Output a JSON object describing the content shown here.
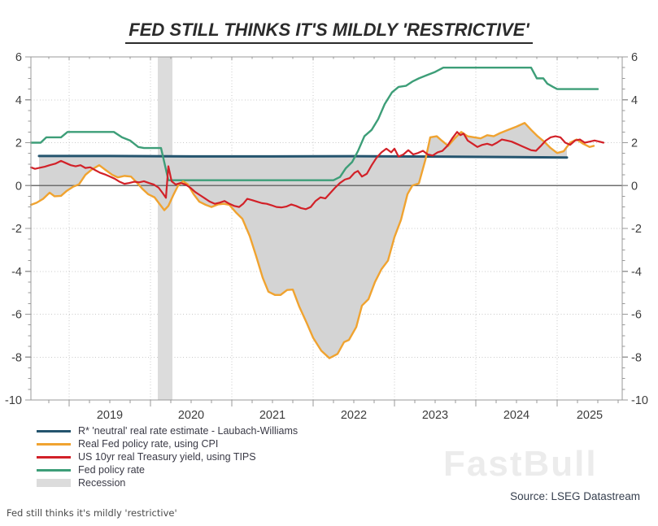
{
  "title": "FED STILL THINKS IT'S MILDLY 'RESTRICTIVE'",
  "caption": "Fed still thinks it's mildly 'restrictive'",
  "source": "Source: LSEG Datastream",
  "watermark": "FastBull",
  "chart_data": {
    "type": "line",
    "title": "FED STILL THINKS IT'S MILDLY 'RESTRICTIVE'",
    "xlabel": "",
    "ylabel": "",
    "x_range": [
      2018.53,
      2025.8
    ],
    "y_range": [
      -10,
      6
    ],
    "grid": true,
    "legend_position": "bottom-left",
    "axis_color": "#999999",
    "grid_color": "#c9c9c9",
    "zero_line_color": "#6e6e6e",
    "tick_label_color": "#3d3d3d",
    "y_ticks": [
      {
        "v": 6,
        "label": "6"
      },
      {
        "v": 4,
        "label": "4"
      },
      {
        "v": 2,
        "label": "2"
      },
      {
        "v": 0,
        "label": "0"
      },
      {
        "v": -2,
        "label": "-2"
      },
      {
        "v": -4,
        "label": "-4"
      },
      {
        "v": -6,
        "label": "-6"
      },
      {
        "v": -8,
        "label": "-8"
      },
      {
        "v": -10,
        "label": "-10"
      }
    ],
    "y_minor_step": 0.5,
    "x_year_ticks": [
      2019,
      2020,
      2021,
      2022,
      2023,
      2024,
      2025
    ],
    "x_minor_step": 0.25,
    "x_tick_labels": [
      {
        "t": 2019.5,
        "label": "2019"
      },
      {
        "t": 2020.5,
        "label": "2020"
      },
      {
        "t": 2021.5,
        "label": "2021"
      },
      {
        "t": 2022.5,
        "label": "2022"
      },
      {
        "t": 2023.5,
        "label": "2023"
      },
      {
        "t": 2024.5,
        "label": "2024"
      },
      {
        "t": 2025.4,
        "label": "2025"
      }
    ],
    "recession": {
      "label": "Recession",
      "color": "#dcdcdc",
      "start": 2020.09,
      "end": 2020.27
    },
    "fill_between": {
      "upper": "Real Fed policy rate, using CPI",
      "lower": "R* 'neutral' real rate estimate - Laubach-Williams",
      "color": "#d4d4d4"
    },
    "series": [
      {
        "name": "R* 'neutral' real rate estimate - Laubach-Williams",
        "color": "#24546e",
        "width": 3,
        "points": [
          [
            2018.63,
            1.38
          ],
          [
            2019.5,
            1.38
          ],
          [
            2020.5,
            1.36
          ],
          [
            2021.5,
            1.36
          ],
          [
            2022.5,
            1.37
          ],
          [
            2023.5,
            1.35
          ],
          [
            2024.3,
            1.33
          ],
          [
            2025.12,
            1.31
          ]
        ]
      },
      {
        "name": "Real Fed policy rate, using CPI",
        "color": "#f0a330",
        "width": 2.4,
        "points": [
          [
            2018.53,
            -0.9
          ],
          [
            2018.6,
            -0.8
          ],
          [
            2018.68,
            -0.62
          ],
          [
            2018.76,
            -0.33
          ],
          [
            2018.82,
            -0.5
          ],
          [
            2018.9,
            -0.48
          ],
          [
            2018.97,
            -0.25
          ],
          [
            2019.05,
            -0.05
          ],
          [
            2019.12,
            0.05
          ],
          [
            2019.2,
            0.5
          ],
          [
            2019.28,
            0.75
          ],
          [
            2019.37,
            0.95
          ],
          [
            2019.45,
            0.72
          ],
          [
            2019.53,
            0.5
          ],
          [
            2019.6,
            0.38
          ],
          [
            2019.68,
            0.45
          ],
          [
            2019.76,
            0.42
          ],
          [
            2019.83,
            0.15
          ],
          [
            2019.9,
            -0.15
          ],
          [
            2019.97,
            -0.4
          ],
          [
            2020.05,
            -0.55
          ],
          [
            2020.1,
            -0.8
          ],
          [
            2020.17,
            -1.15
          ],
          [
            2020.22,
            -0.95
          ],
          [
            2020.28,
            -0.45
          ],
          [
            2020.34,
            0.0
          ],
          [
            2020.4,
            0.2
          ],
          [
            2020.46,
            0.05
          ],
          [
            2020.53,
            -0.4
          ],
          [
            2020.6,
            -0.75
          ],
          [
            2020.68,
            -0.9
          ],
          [
            2020.75,
            -1.0
          ],
          [
            2020.83,
            -0.88
          ],
          [
            2020.9,
            -0.85
          ],
          [
            2020.97,
            -0.9
          ],
          [
            2021.05,
            -1.25
          ],
          [
            2021.13,
            -1.55
          ],
          [
            2021.22,
            -2.35
          ],
          [
            2021.3,
            -3.3
          ],
          [
            2021.38,
            -4.3
          ],
          [
            2021.45,
            -4.95
          ],
          [
            2021.53,
            -5.1
          ],
          [
            2021.6,
            -5.1
          ],
          [
            2021.68,
            -4.87
          ],
          [
            2021.75,
            -4.85
          ],
          [
            2021.83,
            -5.65
          ],
          [
            2021.92,
            -6.4
          ],
          [
            2022.0,
            -7.1
          ],
          [
            2022.1,
            -7.7
          ],
          [
            2022.2,
            -8.05
          ],
          [
            2022.3,
            -7.85
          ],
          [
            2022.38,
            -7.3
          ],
          [
            2022.44,
            -7.2
          ],
          [
            2022.53,
            -6.6
          ],
          [
            2022.6,
            -5.6
          ],
          [
            2022.68,
            -5.3
          ],
          [
            2022.76,
            -4.5
          ],
          [
            2022.84,
            -3.9
          ],
          [
            2022.92,
            -3.5
          ],
          [
            2023.0,
            -2.4
          ],
          [
            2023.08,
            -1.6
          ],
          [
            2023.16,
            -0.4
          ],
          [
            2023.22,
            0.0
          ],
          [
            2023.3,
            0.1
          ],
          [
            2023.38,
            1.2
          ],
          [
            2023.44,
            2.25
          ],
          [
            2023.52,
            2.3
          ],
          [
            2023.58,
            2.1
          ],
          [
            2023.66,
            1.85
          ],
          [
            2023.74,
            2.2
          ],
          [
            2023.82,
            2.5
          ],
          [
            2023.9,
            2.3
          ],
          [
            2023.98,
            2.25
          ],
          [
            2024.06,
            2.2
          ],
          [
            2024.14,
            2.35
          ],
          [
            2024.22,
            2.3
          ],
          [
            2024.3,
            2.45
          ],
          [
            2024.4,
            2.6
          ],
          [
            2024.5,
            2.75
          ],
          [
            2024.6,
            2.92
          ],
          [
            2024.68,
            2.6
          ],
          [
            2024.76,
            2.3
          ],
          [
            2024.84,
            2.05
          ],
          [
            2024.92,
            1.75
          ],
          [
            2025.0,
            1.52
          ],
          [
            2025.08,
            1.6
          ],
          [
            2025.16,
            2.0
          ],
          [
            2025.24,
            2.15
          ],
          [
            2025.32,
            1.95
          ],
          [
            2025.4,
            1.8
          ],
          [
            2025.45,
            1.85
          ]
        ]
      },
      {
        "name": "US 10yr real Treasury yield, using TIPS",
        "color": "#d22128",
        "width": 2.2,
        "points": [
          [
            2018.53,
            0.85
          ],
          [
            2018.58,
            0.78
          ],
          [
            2018.64,
            0.83
          ],
          [
            2018.7,
            0.88
          ],
          [
            2018.76,
            0.95
          ],
          [
            2018.83,
            1.02
          ],
          [
            2018.9,
            1.15
          ],
          [
            2018.96,
            1.05
          ],
          [
            2019.02,
            0.95
          ],
          [
            2019.08,
            0.9
          ],
          [
            2019.14,
            0.95
          ],
          [
            2019.2,
            0.82
          ],
          [
            2019.26,
            0.85
          ],
          [
            2019.32,
            0.72
          ],
          [
            2019.38,
            0.6
          ],
          [
            2019.44,
            0.52
          ],
          [
            2019.5,
            0.42
          ],
          [
            2019.56,
            0.32
          ],
          [
            2019.62,
            0.18
          ],
          [
            2019.68,
            0.08
          ],
          [
            2019.74,
            0.12
          ],
          [
            2019.8,
            0.18
          ],
          [
            2019.86,
            0.15
          ],
          [
            2019.92,
            0.2
          ],
          [
            2019.98,
            0.12
          ],
          [
            2020.04,
            0.05
          ],
          [
            2020.1,
            -0.1
          ],
          [
            2020.15,
            -0.35
          ],
          [
            2020.19,
            -0.57
          ],
          [
            2020.22,
            0.9
          ],
          [
            2020.26,
            0.2
          ],
          [
            2020.31,
            0.05
          ],
          [
            2020.37,
            0.12
          ],
          [
            2020.43,
            0.05
          ],
          [
            2020.49,
            -0.1
          ],
          [
            2020.55,
            -0.3
          ],
          [
            2020.61,
            -0.45
          ],
          [
            2020.67,
            -0.6
          ],
          [
            2020.73,
            -0.75
          ],
          [
            2020.79,
            -0.85
          ],
          [
            2020.85,
            -0.8
          ],
          [
            2020.91,
            -0.72
          ],
          [
            2020.97,
            -0.85
          ],
          [
            2021.03,
            -0.95
          ],
          [
            2021.09,
            -1.0
          ],
          [
            2021.14,
            -0.85
          ],
          [
            2021.19,
            -0.62
          ],
          [
            2021.25,
            -0.68
          ],
          [
            2021.31,
            -0.75
          ],
          [
            2021.37,
            -0.82
          ],
          [
            2021.43,
            -0.85
          ],
          [
            2021.49,
            -0.92
          ],
          [
            2021.55,
            -1.0
          ],
          [
            2021.61,
            -1.02
          ],
          [
            2021.67,
            -0.98
          ],
          [
            2021.73,
            -0.88
          ],
          [
            2021.79,
            -0.95
          ],
          [
            2021.85,
            -1.05
          ],
          [
            2021.91,
            -1.1
          ],
          [
            2021.97,
            -1.0
          ],
          [
            2022.03,
            -0.72
          ],
          [
            2022.09,
            -0.55
          ],
          [
            2022.15,
            -0.6
          ],
          [
            2022.21,
            -0.35
          ],
          [
            2022.27,
            -0.1
          ],
          [
            2022.33,
            0.12
          ],
          [
            2022.39,
            0.28
          ],
          [
            2022.45,
            0.35
          ],
          [
            2022.51,
            0.6
          ],
          [
            2022.55,
            0.68
          ],
          [
            2022.6,
            0.42
          ],
          [
            2022.66,
            0.55
          ],
          [
            2022.72,
            0.95
          ],
          [
            2022.78,
            1.3
          ],
          [
            2022.84,
            1.55
          ],
          [
            2022.9,
            1.72
          ],
          [
            2022.96,
            1.55
          ],
          [
            2023.0,
            1.72
          ],
          [
            2023.05,
            1.35
          ],
          [
            2023.11,
            1.45
          ],
          [
            2023.17,
            1.65
          ],
          [
            2023.23,
            1.45
          ],
          [
            2023.29,
            1.52
          ],
          [
            2023.35,
            1.62
          ],
          [
            2023.41,
            1.45
          ],
          [
            2023.47,
            1.4
          ],
          [
            2023.53,
            1.55
          ],
          [
            2023.59,
            1.62
          ],
          [
            2023.65,
            1.85
          ],
          [
            2023.71,
            2.2
          ],
          [
            2023.77,
            2.5
          ],
          [
            2023.81,
            2.35
          ],
          [
            2023.85,
            2.42
          ],
          [
            2023.9,
            2.1
          ],
          [
            2023.96,
            1.95
          ],
          [
            2024.02,
            1.8
          ],
          [
            2024.08,
            1.9
          ],
          [
            2024.14,
            1.95
          ],
          [
            2024.2,
            1.88
          ],
          [
            2024.26,
            2.0
          ],
          [
            2024.32,
            2.15
          ],
          [
            2024.38,
            2.1
          ],
          [
            2024.44,
            2.05
          ],
          [
            2024.5,
            1.95
          ],
          [
            2024.56,
            1.85
          ],
          [
            2024.62,
            1.75
          ],
          [
            2024.68,
            1.65
          ],
          [
            2024.74,
            1.62
          ],
          [
            2024.8,
            1.85
          ],
          [
            2024.86,
            2.1
          ],
          [
            2024.92,
            2.25
          ],
          [
            2024.98,
            2.3
          ],
          [
            2025.04,
            2.25
          ],
          [
            2025.1,
            2.0
          ],
          [
            2025.16,
            1.9
          ],
          [
            2025.22,
            2.1
          ],
          [
            2025.28,
            2.15
          ],
          [
            2025.34,
            2.0
          ],
          [
            2025.4,
            2.05
          ],
          [
            2025.46,
            2.1
          ],
          [
            2025.52,
            2.05
          ],
          [
            2025.57,
            2.0
          ]
        ]
      },
      {
        "name": "Fed policy rate",
        "color": "#3d9e78",
        "width": 2.4,
        "points": [
          [
            2018.53,
            2.0
          ],
          [
            2018.65,
            2.0
          ],
          [
            2018.72,
            2.25
          ],
          [
            2018.9,
            2.25
          ],
          [
            2018.98,
            2.5
          ],
          [
            2019.55,
            2.5
          ],
          [
            2019.65,
            2.25
          ],
          [
            2019.75,
            2.1
          ],
          [
            2019.85,
            1.8
          ],
          [
            2019.92,
            1.75
          ],
          [
            2020.13,
            1.75
          ],
          [
            2020.22,
            0.25
          ],
          [
            2022.25,
            0.25
          ],
          [
            2022.33,
            0.4
          ],
          [
            2022.4,
            0.8
          ],
          [
            2022.48,
            1.1
          ],
          [
            2022.55,
            1.6
          ],
          [
            2022.63,
            2.3
          ],
          [
            2022.72,
            2.6
          ],
          [
            2022.8,
            3.1
          ],
          [
            2022.88,
            3.8
          ],
          [
            2022.97,
            4.35
          ],
          [
            2023.05,
            4.6
          ],
          [
            2023.14,
            4.65
          ],
          [
            2023.22,
            4.85
          ],
          [
            2023.3,
            5.0
          ],
          [
            2023.4,
            5.15
          ],
          [
            2023.5,
            5.3
          ],
          [
            2023.6,
            5.5
          ],
          [
            2024.68,
            5.5
          ],
          [
            2024.75,
            5.0
          ],
          [
            2024.83,
            5.0
          ],
          [
            2024.88,
            4.75
          ],
          [
            2024.95,
            4.6
          ],
          [
            2025.0,
            4.5
          ],
          [
            2025.5,
            4.5
          ]
        ]
      }
    ]
  }
}
